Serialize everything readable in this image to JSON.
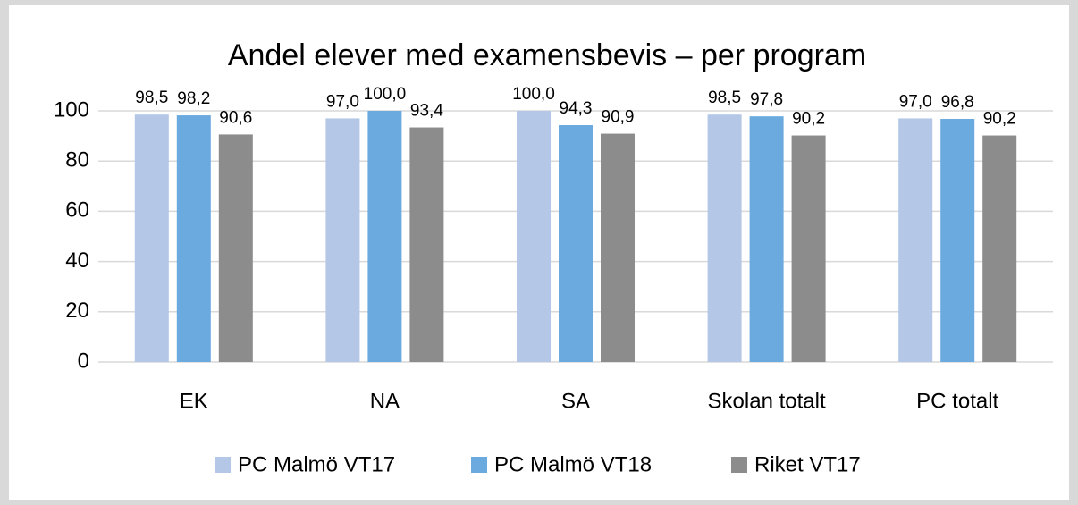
{
  "chart_data": {
    "type": "bar",
    "title": "Andel elever med examensbevis – per program",
    "categories": [
      "EK",
      "NA",
      "SA",
      "Skolan totalt",
      "PC totalt"
    ],
    "series": [
      {
        "name": "PC Malmö VT17",
        "color": "#b4c7e7",
        "values": [
          98.5,
          97.0,
          100.0,
          98.5,
          97.0
        ],
        "value_labels": [
          "98,5",
          "97,0",
          "100,0",
          "98,5",
          "97,0"
        ]
      },
      {
        "name": "PC Malmö VT18",
        "color": "#6aaade",
        "values": [
          98.2,
          100.0,
          94.3,
          97.8,
          96.8
        ],
        "value_labels": [
          "98,2",
          "100,0",
          "94,3",
          "97,8",
          "96,8"
        ]
      },
      {
        "name": "Riket VT17",
        "color": "#8c8c8c",
        "values": [
          90.6,
          93.4,
          90.9,
          90.2,
          90.2
        ],
        "value_labels": [
          "90,6",
          "93,4",
          "90,9",
          "90,2",
          "90,2"
        ]
      }
    ],
    "ylim": [
      0,
      100
    ],
    "yticks": [
      0,
      20,
      40,
      60,
      80,
      100
    ],
    "grid": true,
    "legend": "bottom"
  }
}
